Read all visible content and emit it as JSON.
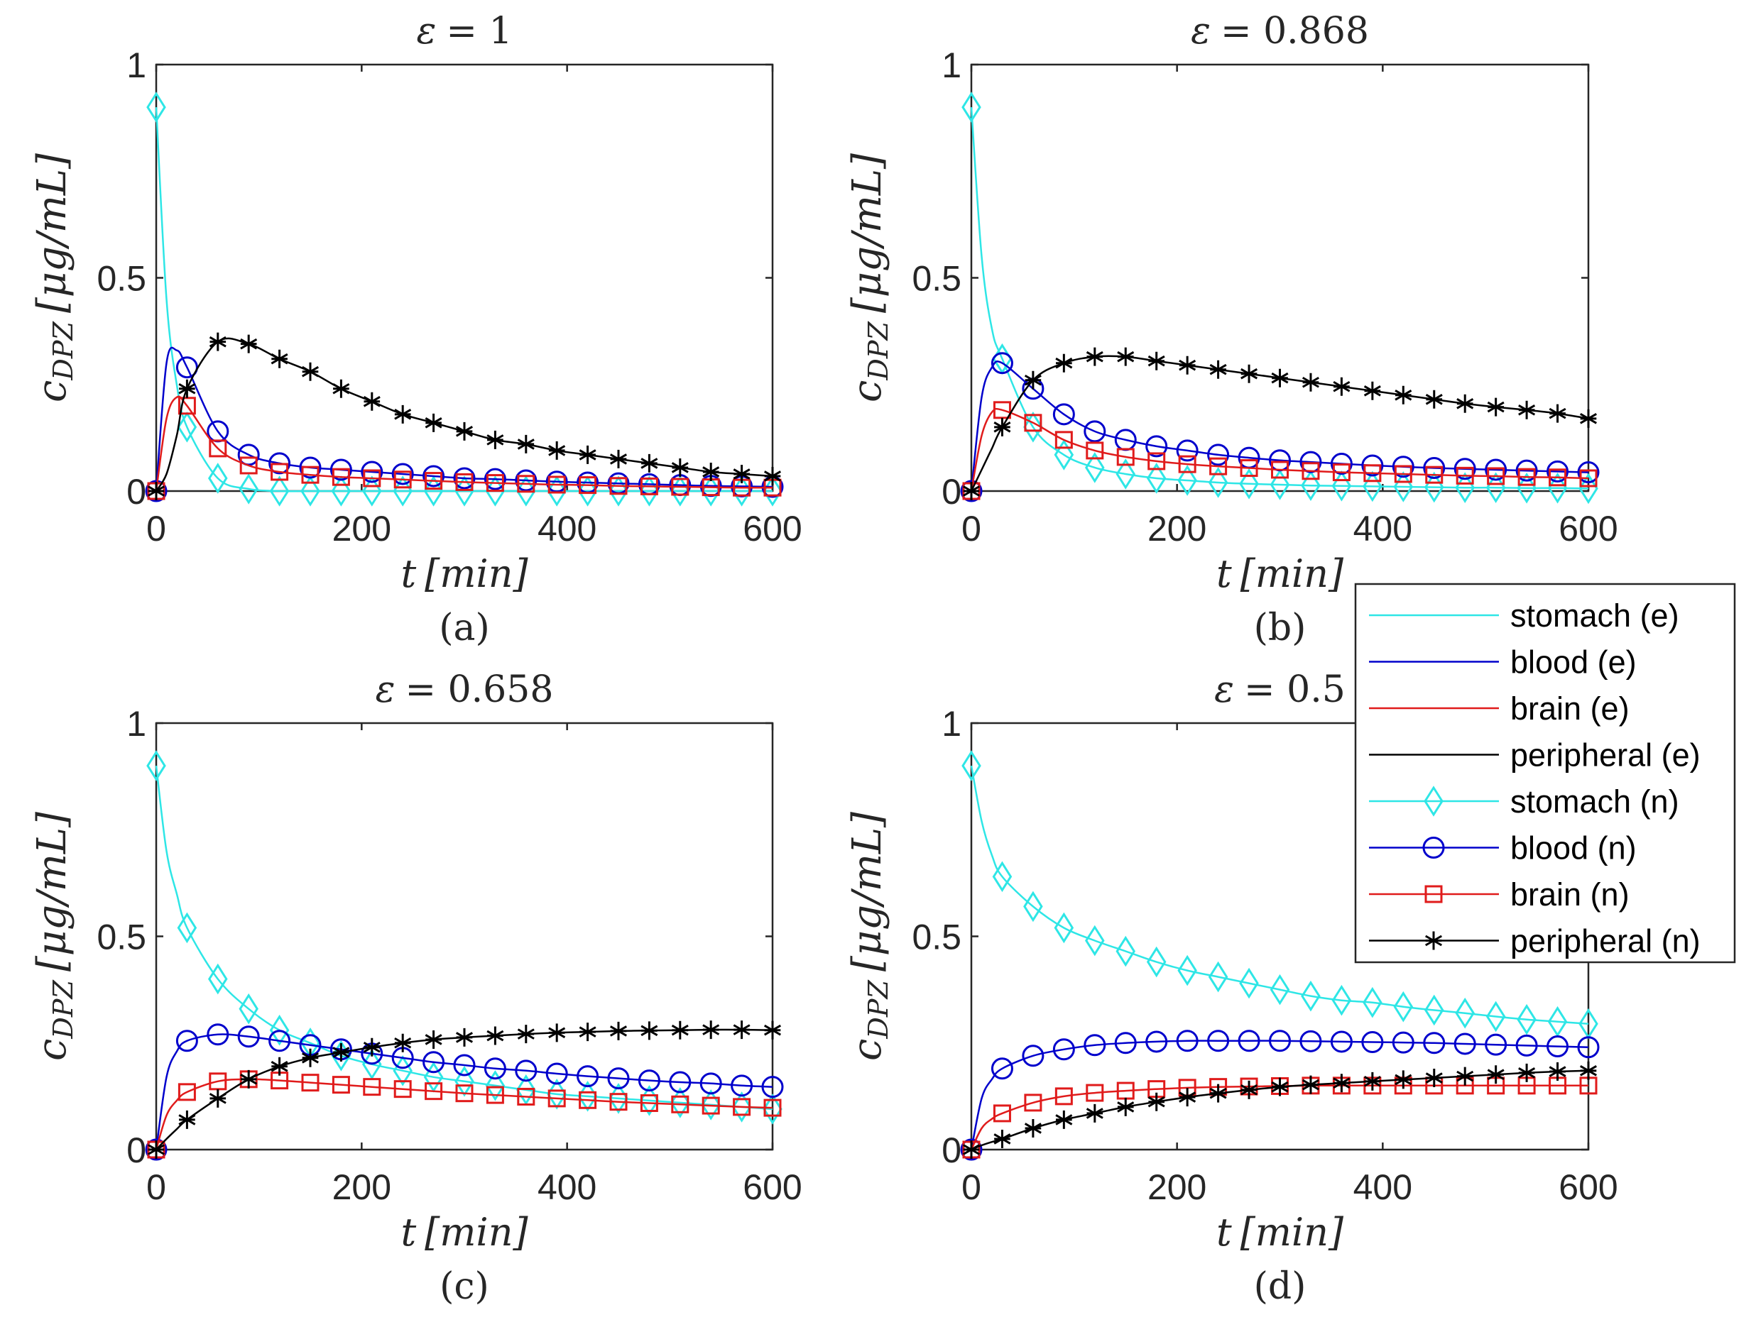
{
  "colors": {
    "stomach": "#2ee6e6",
    "blood": "#0000cc",
    "brain": "#e01b1b",
    "peripheral": "#000000",
    "axis": "#262626"
  },
  "chart_data": {
    "type": "line",
    "shared": {
      "xlabel_var": "t",
      "xlabel_unit": "[min]",
      "ylabel_var": "c",
      "ylabel_sub": "DPZ",
      "ylabel_unit": "[μg/mL]",
      "xlim": [
        0,
        600
      ],
      "ylim": [
        0,
        1
      ],
      "xticks": [
        "0",
        "200",
        "400",
        "600"
      ],
      "yticks": [
        "0",
        "0.5",
        "1"
      ],
      "grid": false,
      "x_n": [
        0,
        30,
        60,
        90,
        120,
        150,
        180,
        210,
        240,
        270,
        300,
        330,
        360,
        390,
        420,
        450,
        480,
        510,
        540,
        570,
        600
      ],
      "x_e_early": [
        10,
        20
      ]
    },
    "legend": {
      "placement": "right-middle",
      "entries": [
        {
          "label": "stomach (e)",
          "series": "stomach",
          "marker": "none"
        },
        {
          "label": "blood (e)",
          "series": "blood",
          "marker": "none"
        },
        {
          "label": "brain (e)",
          "series": "brain",
          "marker": "none"
        },
        {
          "label": "peripheral (e)",
          "series": "peripheral",
          "marker": "none"
        },
        {
          "label": "stomach (n)",
          "series": "stomach",
          "marker": "diamond"
        },
        {
          "label": "blood (n)",
          "series": "blood",
          "marker": "circle"
        },
        {
          "label": "brain (n)",
          "series": "brain",
          "marker": "square"
        },
        {
          "label": "peripheral (n)",
          "series": "peripheral",
          "marker": "asterisk"
        }
      ]
    },
    "panels": [
      {
        "title_var": "ε",
        "title_value": "= 1",
        "caption": "(a)",
        "early": {
          "stomach": [
            0.45,
            0.25
          ],
          "blood": [
            0.3,
            0.33
          ],
          "brain": [
            0.17,
            0.22
          ],
          "peripheral": [
            0.04,
            0.13
          ]
        },
        "series": {
          "stomach": [
            0.9,
            0.15,
            0.03,
            0.005,
            0,
            0,
            0,
            0,
            0,
            0,
            0,
            0,
            0,
            0,
            0,
            0,
            0,
            0,
            0,
            0,
            0
          ],
          "blood": [
            0,
            0.29,
            0.14,
            0.085,
            0.065,
            0.055,
            0.05,
            0.045,
            0.04,
            0.035,
            0.03,
            0.028,
            0.025,
            0.022,
            0.02,
            0.018,
            0.016,
            0.014,
            0.012,
            0.011,
            0.01
          ],
          "brain": [
            0,
            0.2,
            0.1,
            0.06,
            0.045,
            0.038,
            0.033,
            0.03,
            0.027,
            0.024,
            0.021,
            0.019,
            0.017,
            0.015,
            0.014,
            0.012,
            0.011,
            0.01,
            0.009,
            0.008,
            0.008
          ],
          "peripheral": [
            0,
            0.24,
            0.35,
            0.345,
            0.31,
            0.28,
            0.24,
            0.21,
            0.18,
            0.16,
            0.14,
            0.12,
            0.11,
            0.095,
            0.085,
            0.075,
            0.065,
            0.055,
            0.045,
            0.04,
            0.035
          ]
        }
      },
      {
        "title_var": "ε",
        "title_value": "= 0.868",
        "caption": "(b)",
        "early": {
          "stomach": [
            0.55,
            0.38
          ],
          "blood": [
            0.22,
            0.29
          ],
          "brain": [
            0.13,
            0.185
          ],
          "peripheral": [
            0.05,
            0.1
          ]
        },
        "series": {
          "stomach": [
            0.9,
            0.31,
            0.15,
            0.085,
            0.055,
            0.04,
            0.03,
            0.025,
            0.02,
            0.017,
            0.015,
            0.013,
            0.012,
            0.011,
            0.01,
            0.009,
            0.008,
            0.008,
            0.007,
            0.007,
            0.006
          ],
          "blood": [
            0,
            0.3,
            0.24,
            0.18,
            0.14,
            0.12,
            0.105,
            0.095,
            0.085,
            0.078,
            0.072,
            0.068,
            0.064,
            0.06,
            0.057,
            0.054,
            0.052,
            0.05,
            0.048,
            0.046,
            0.044
          ],
          "brain": [
            0,
            0.19,
            0.16,
            0.12,
            0.095,
            0.08,
            0.07,
            0.063,
            0.058,
            0.054,
            0.05,
            0.047,
            0.044,
            0.042,
            0.04,
            0.038,
            0.036,
            0.035,
            0.033,
            0.032,
            0.03
          ],
          "peripheral": [
            0,
            0.15,
            0.26,
            0.3,
            0.315,
            0.315,
            0.305,
            0.295,
            0.285,
            0.275,
            0.265,
            0.255,
            0.245,
            0.235,
            0.225,
            0.215,
            0.205,
            0.197,
            0.19,
            0.182,
            0.17
          ]
        }
      },
      {
        "title_var": "ε",
        "title_value": "= 0.658",
        "caption": "(c)",
        "early": {
          "stomach": [
            0.7,
            0.6
          ],
          "blood": [
            0.17,
            0.23
          ],
          "brain": [
            0.08,
            0.115
          ],
          "peripheral": [
            0.025,
            0.048
          ]
        },
        "series": {
          "stomach": [
            0.9,
            0.52,
            0.4,
            0.33,
            0.28,
            0.25,
            0.22,
            0.2,
            0.185,
            0.17,
            0.16,
            0.15,
            0.14,
            0.13,
            0.125,
            0.12,
            0.115,
            0.11,
            0.105,
            0.1,
            0.095
          ],
          "blood": [
            0,
            0.255,
            0.27,
            0.265,
            0.255,
            0.245,
            0.235,
            0.225,
            0.215,
            0.205,
            0.198,
            0.19,
            0.185,
            0.178,
            0.172,
            0.167,
            0.162,
            0.158,
            0.155,
            0.15,
            0.147
          ],
          "brain": [
            0,
            0.135,
            0.16,
            0.165,
            0.162,
            0.157,
            0.152,
            0.147,
            0.142,
            0.137,
            0.132,
            0.128,
            0.124,
            0.12,
            0.116,
            0.112,
            0.109,
            0.106,
            0.103,
            0.1,
            0.098
          ],
          "peripheral": [
            0,
            0.07,
            0.12,
            0.165,
            0.195,
            0.215,
            0.228,
            0.24,
            0.25,
            0.258,
            0.263,
            0.267,
            0.271,
            0.274,
            0.276,
            0.278,
            0.279,
            0.28,
            0.281,
            0.281,
            0.28
          ]
        }
      },
      {
        "title_var": "ε",
        "title_value": "= 0.5",
        "caption": "(d)",
        "early": {
          "stomach": [
            0.77,
            0.69
          ],
          "blood": [
            0.12,
            0.165
          ],
          "brain": [
            0.05,
            0.072
          ],
          "peripheral": [
            0.01,
            0.018
          ]
        },
        "series": {
          "stomach": [
            0.9,
            0.64,
            0.57,
            0.52,
            0.49,
            0.465,
            0.44,
            0.42,
            0.405,
            0.39,
            0.375,
            0.36,
            0.35,
            0.345,
            0.335,
            0.327,
            0.32,
            0.312,
            0.305,
            0.3,
            0.295
          ],
          "blood": [
            0,
            0.19,
            0.22,
            0.235,
            0.245,
            0.25,
            0.253,
            0.255,
            0.255,
            0.255,
            0.255,
            0.254,
            0.253,
            0.252,
            0.251,
            0.25,
            0.248,
            0.246,
            0.244,
            0.242,
            0.24
          ],
          "brain": [
            0,
            0.085,
            0.11,
            0.125,
            0.133,
            0.138,
            0.142,
            0.145,
            0.147,
            0.148,
            0.149,
            0.15,
            0.15,
            0.15,
            0.15,
            0.15,
            0.15,
            0.15,
            0.15,
            0.15,
            0.15
          ],
          "peripheral": [
            0,
            0.025,
            0.05,
            0.07,
            0.085,
            0.1,
            0.112,
            0.123,
            0.132,
            0.14,
            0.147,
            0.152,
            0.156,
            0.16,
            0.164,
            0.168,
            0.172,
            0.176,
            0.18,
            0.183,
            0.185
          ]
        }
      }
    ]
  }
}
